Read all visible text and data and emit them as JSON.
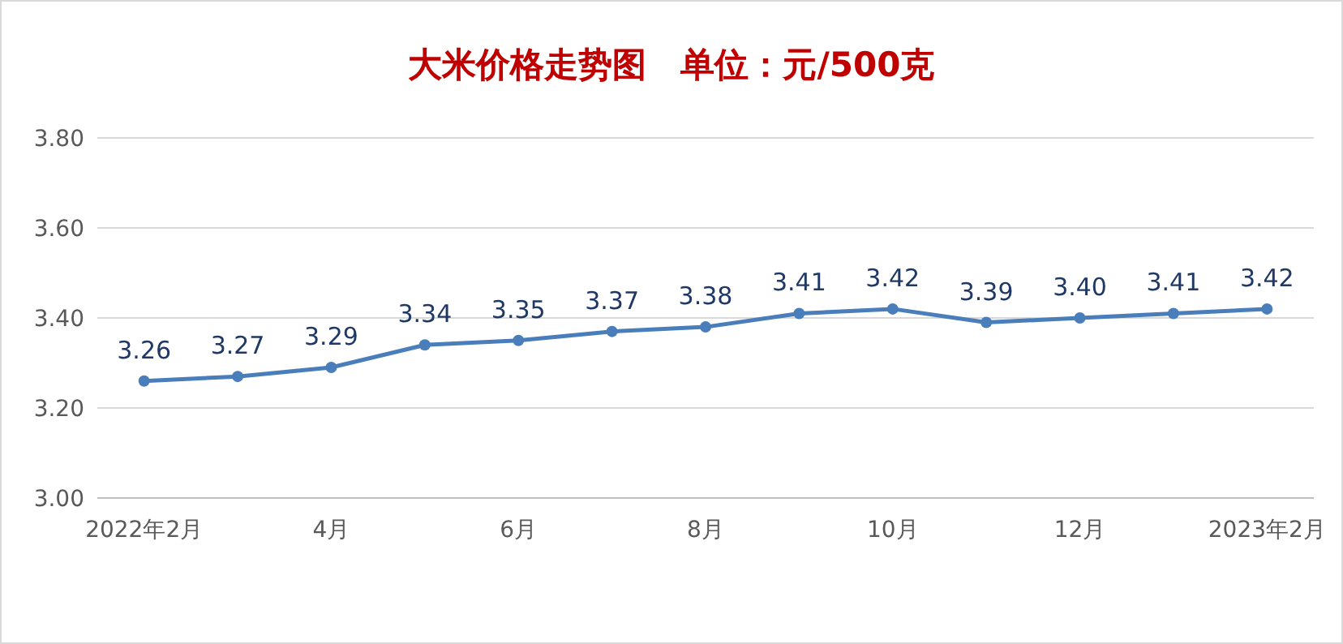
{
  "chart_data": {
    "type": "line",
    "title": "大米价格走势图　单位：元/500克",
    "categories": [
      "2022年2月",
      null,
      "4月",
      null,
      "6月",
      null,
      "8月",
      null,
      "10月",
      null,
      "12月",
      null,
      "2023年2月"
    ],
    "series": [
      {
        "color": "#4a7ebb",
        "values": [
          3.26,
          3.27,
          3.29,
          3.34,
          3.35,
          3.37,
          3.38,
          3.41,
          3.42,
          3.39,
          3.4,
          3.41,
          3.42
        ],
        "value_labels": [
          "3.26",
          "3.27",
          "3.29",
          "3.34",
          "3.35",
          "3.37",
          "3.38",
          "3.41",
          "3.42",
          "3.39",
          "3.40",
          "3.41",
          "3.42"
        ]
      }
    ],
    "ylim": [
      3.0,
      3.8
    ],
    "yticks": [
      {
        "value": 3.0,
        "label": "3.00"
      },
      {
        "value": 3.2,
        "label": "3.20"
      },
      {
        "value": 3.4,
        "label": "3.40"
      },
      {
        "value": 3.6,
        "label": "3.60"
      },
      {
        "value": 3.8,
        "label": "3.80"
      }
    ],
    "grid": "y",
    "marker": "circle",
    "line_style": "solid"
  }
}
